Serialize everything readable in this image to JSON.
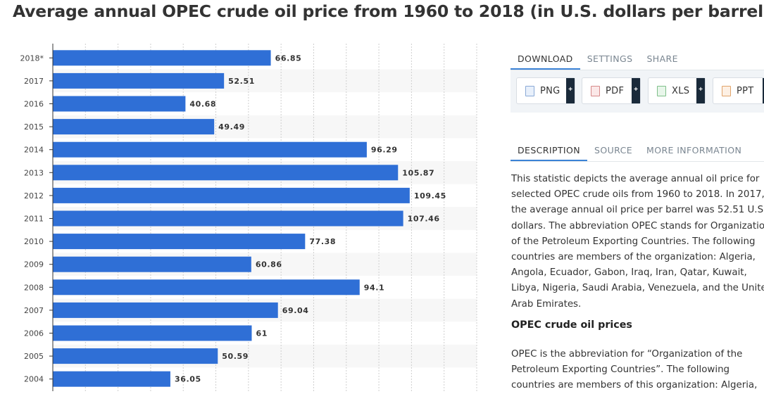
{
  "title": "Average annual OPEC crude oil price from 1960 to 2018 (in U.S. dollars per barrel)",
  "chart_data": {
    "type": "bar",
    "orientation": "horizontal",
    "categories": [
      "2018*",
      "2017",
      "2016",
      "2015",
      "2014",
      "2013",
      "2012",
      "2011",
      "2010",
      "2009",
      "2008",
      "2007",
      "2006",
      "2005",
      "2004"
    ],
    "values": [
      66.85,
      52.51,
      40.68,
      49.49,
      96.29,
      105.87,
      109.45,
      107.46,
      77.38,
      60.86,
      94.1,
      69.04,
      61,
      50.59,
      36.05
    ],
    "value_labels": [
      "66.85",
      "52.51",
      "40.68",
      "49.49",
      "96.29",
      "105.87",
      "109.45",
      "107.46",
      "77.38",
      "60.86",
      "94.1",
      "69.04",
      "61",
      "50.59",
      "36.05"
    ],
    "xlim": [
      0,
      130
    ],
    "grid": true,
    "bar_color": "#2f6fd6"
  },
  "download_tabs": [
    "DOWNLOAD",
    "SETTINGS",
    "SHARE"
  ],
  "download_buttons": [
    {
      "label": "PNG",
      "icon": "png-file-icon"
    },
    {
      "label": "PDF",
      "icon": "pdf-file-icon"
    },
    {
      "label": "XLS",
      "icon": "xls-file-icon"
    },
    {
      "label": "PPT",
      "icon": "ppt-file-icon"
    }
  ],
  "plus_symbol": "+",
  "info_tabs": [
    "DESCRIPTION",
    "SOURCE",
    "MORE INFORMATION"
  ],
  "description": {
    "paragraph1": "This statistic depicts the average annual oil price for selected OPEC crude oils from 1960 to 2018. In 2017, the average annual oil price per barrel was 52.51 U.S. dollars. The abbreviation OPEC stands for Organization of the Petroleum Exporting Countries. The following countries are members of the organization: Algeria, Angola, Ecuador, Gabon, Iraq, Iran, Qatar, Kuwait, Libya, Nigeria, Saudi Arabia, Venezuela, and the United Arab Emirates.",
    "heading": "OPEC crude oil prices",
    "paragraph2": "OPEC is the abbreviation for “Organization of the Petroleum Exporting Countries”. The following countries are members of this organization: Algeria,"
  },
  "colors": {
    "accent": "#3b82d6",
    "tab_inactive": "#7a8691",
    "dark_plus": "#1a2a3a"
  }
}
